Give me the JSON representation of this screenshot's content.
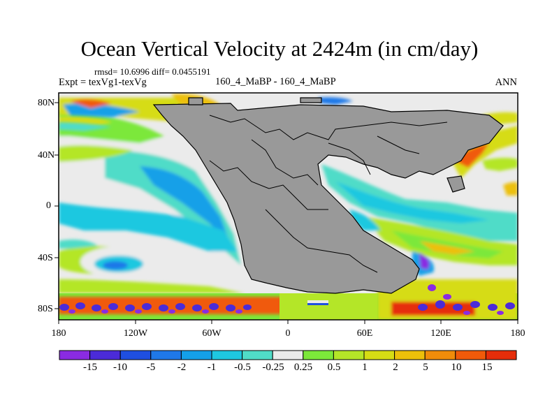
{
  "header": {
    "title": "Ocean Vertical Velocity at 2424m (in cm/day)",
    "stats": "rmsd= 10.6996 diff= 0.0455191",
    "experiment": "Expt = texVg1-texVg",
    "cases": "160_4_MaBP - 160_4_MaBP",
    "season": "ANN"
  },
  "axes": {
    "lat_ticks": [
      "80N",
      "40N",
      "0",
      "40S",
      "80S"
    ],
    "lon_ticks": [
      "180",
      "120W",
      "60W",
      "0",
      "60E",
      "120E",
      "180"
    ]
  },
  "colorbar": {
    "labels": [
      "-15",
      "-10",
      "-5",
      "-2",
      "-1",
      "-0.5",
      "-0.25",
      "0.25",
      "0.5",
      "1",
      "2",
      "5",
      "10",
      "15"
    ],
    "colors": [
      "#8a2be2",
      "#4b2bd8",
      "#1f4fe0",
      "#1f78e8",
      "#14a0e8",
      "#1ec8e0",
      "#50dcc8",
      "#ebebeb",
      "#7ce83a",
      "#b4e628",
      "#d6dc14",
      "#ecc00a",
      "#f08c0a",
      "#f05a0a",
      "#e62d0a"
    ]
  },
  "map_colors": {
    "land": "#999999",
    "coast": "#000000",
    "ocean_neutral": "#ebebeb"
  }
}
